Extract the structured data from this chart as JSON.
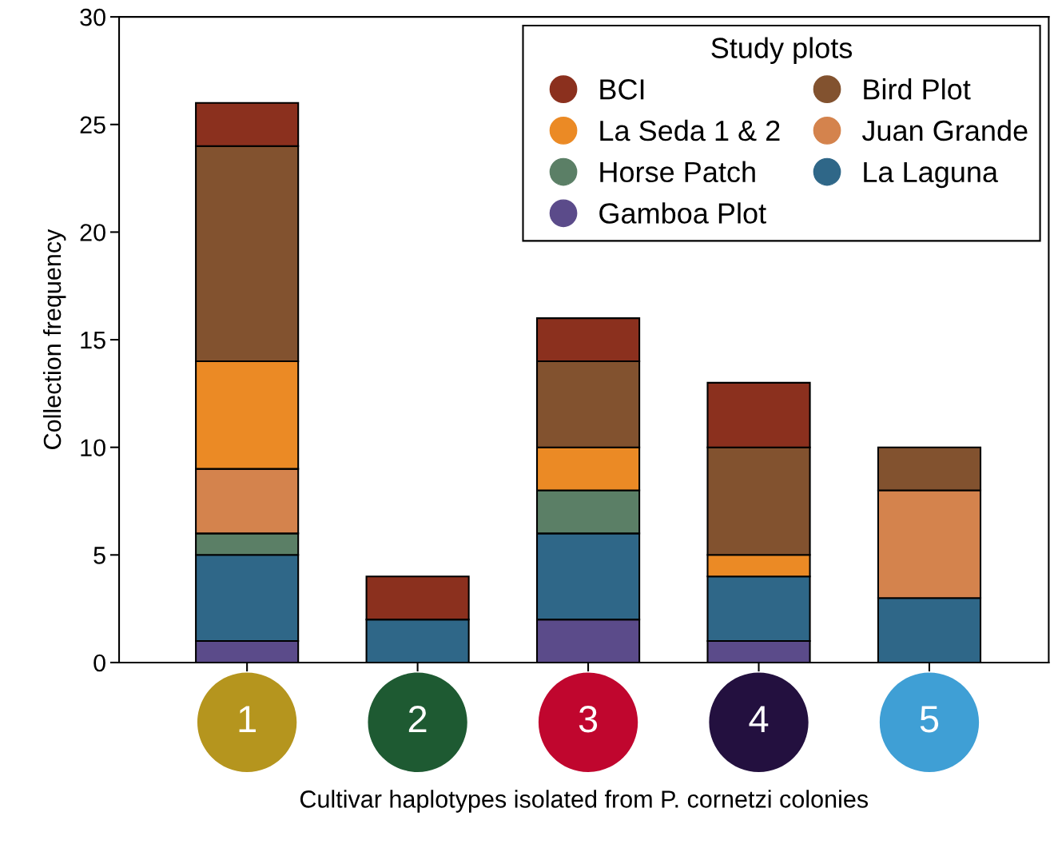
{
  "chart_data": {
    "type": "bar",
    "stacked": true,
    "xlabel": "Cultivar haplotypes isolated from P. cornetzi colonies",
    "ylabel": "Collection frequency",
    "legend_title": "Study plots",
    "legend": "top right",
    "marker": "circle",
    "categories": [
      "1",
      "2",
      "3",
      "4",
      "5"
    ],
    "ylim": [
      0,
      30
    ],
    "yticks": [
      0,
      5,
      10,
      15,
      20,
      25,
      30
    ],
    "grid": false,
    "series": [
      {
        "name": "Gamboa Plot",
        "color": "#5b4b8a",
        "values": [
          1,
          0,
          2,
          1,
          0
        ]
      },
      {
        "name": "La Laguna",
        "color": "#2f6788",
        "values": [
          4,
          2,
          4,
          3,
          3
        ]
      },
      {
        "name": "Horse Patch",
        "color": "#5b7f66",
        "values": [
          1,
          0,
          2,
          0,
          0
        ]
      },
      {
        "name": "Juan Grande",
        "color": "#d4834d",
        "values": [
          3,
          0,
          0,
          0,
          5
        ]
      },
      {
        "name": "La Seda 1 & 2",
        "color": "#eb8a25",
        "values": [
          5,
          0,
          2,
          1,
          0
        ]
      },
      {
        "name": "Bird Plot",
        "color": "#82522f",
        "values": [
          10,
          0,
          4,
          5,
          2
        ]
      },
      {
        "name": "BCI",
        "color": "#8b301e",
        "values": [
          2,
          2,
          2,
          3,
          0
        ]
      }
    ]
  }
}
